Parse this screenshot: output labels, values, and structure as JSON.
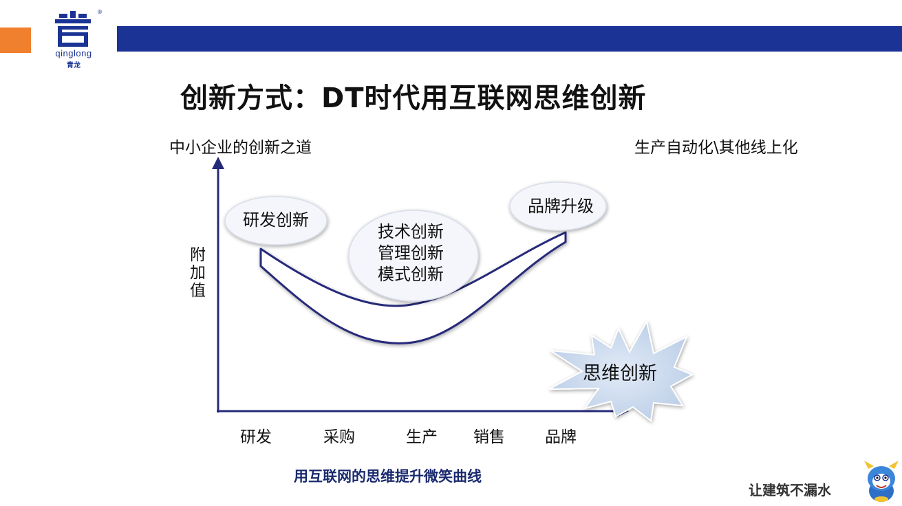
{
  "header": {
    "logo_text": "qinglong",
    "logo_cn": "青龙",
    "reg_mark": "®"
  },
  "title": "创新方式：DT时代用互联网思维创新",
  "diagram": {
    "top_left_label": "中小企业的创新之道",
    "top_right_label": "生产自动化\\其他线上化",
    "y_axis_label": "附加值",
    "x_ticks": [
      "研发",
      "采购",
      "生产",
      "销售",
      "品牌"
    ],
    "bubbles": {
      "rd": "研发创新",
      "middle": [
        "技术创新",
        "管理创新",
        "模式创新"
      ],
      "brand": "品牌升级"
    },
    "starburst": "思维创新",
    "caption": "用互联网的思维提升微笑曲线"
  },
  "footer": {
    "slogan": "让建筑不漏水"
  },
  "colors": {
    "brand_blue": "#1a3394",
    "orange": "#f07f2e",
    "axis_navy": "#25297a",
    "bubble_fill": "#f5f6fb",
    "star_fill": "#cfdcef"
  }
}
